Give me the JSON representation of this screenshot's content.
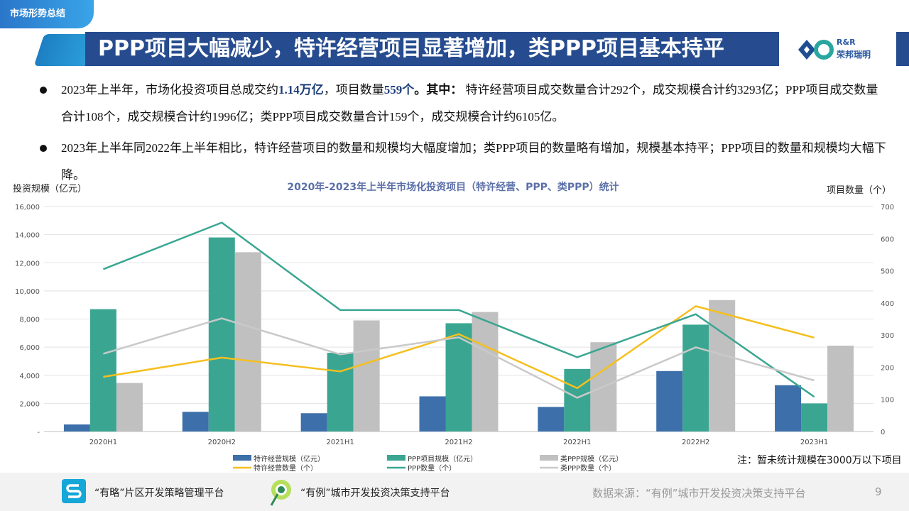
{
  "header": {
    "section_tag": "市场形势总结",
    "title": "PPP项目大幅减少，特许经营项目显著增加，类PPP项目基本持平",
    "logo_latin": "R&R",
    "logo_cn": "荣邦瑞明"
  },
  "bullets": [
    {
      "p1": "2023年上半年，市场化投资项目总成交约",
      "h1": "1.14万亿",
      "p2": "，项目数量",
      "h2": "559个",
      "p3": "。其中：",
      "p4": " 特许经营项目成交数量合计292个，成交规模合计约3293亿；PPP项目成交数量合计108个，成交规模合计约1996亿；类PPP项目成交数量合计159个，成交规模合计约6105亿。"
    },
    {
      "text": "2023年上半年同2022年上半年相比，特许经营项目的数量和规模均大幅度增加；类PPP项目的数量略有增加，规模基本持平；PPP项目的数量和规模均大幅下降。"
    }
  ],
  "chart_data": {
    "type": "bar",
    "title": "2020年-2023年上半年市场化投资项目（特许经营、PPP、类PPP）统计",
    "ylabel_left": "投资规模（亿元）",
    "ylabel_right": "项目数量（个）",
    "categories": [
      "2020H1",
      "2020H2",
      "2021H1",
      "2021H2",
      "2022H1",
      "2022H2",
      "2023H1"
    ],
    "ylim_left": [
      0,
      16000
    ],
    "ylim_right": [
      0,
      700
    ],
    "left_ticks": [
      "-",
      "2,000",
      "4,000",
      "6,000",
      "8,000",
      "10,000",
      "12,000",
      "14,000",
      "16,000"
    ],
    "right_ticks": [
      "0",
      "100",
      "200",
      "300",
      "400",
      "500",
      "600",
      "700"
    ],
    "bar_series": [
      {
        "name": "特许经营规模（亿元）",
        "color": "#3d6faa",
        "values": [
          500,
          1400,
          1300,
          2500,
          1750,
          4300,
          3293
        ]
      },
      {
        "name": "PPP项目规模（亿元）",
        "color": "#3aa692",
        "values": [
          8700,
          13800,
          5600,
          7700,
          4450,
          7600,
          1996
        ]
      },
      {
        "name": "类PPP规模（亿元）",
        "color": "#c0c0c0",
        "values": [
          3450,
          12750,
          7900,
          8500,
          6350,
          9350,
          6105
        ]
      }
    ],
    "line_series": [
      {
        "name": "特许经营数量（个）",
        "color": "#f5bf1e",
        "values": [
          170,
          230,
          187,
          303,
          135,
          390,
          292
        ]
      },
      {
        "name": "PPP数量（个）",
        "color": "#3aa692",
        "values": [
          505,
          650,
          378,
          378,
          231,
          365,
          108
        ]
      },
      {
        "name": "类PPP数量（个）",
        "color": "#c9c9c9",
        "values": [
          242,
          352,
          240,
          293,
          105,
          262,
          159
        ]
      }
    ],
    "legend_position": "bottom",
    "grid": true,
    "note": "注：暂未统计规模在3000万以下项目"
  },
  "footer": {
    "platform1": "“有略”片区开发策略管理平台",
    "platform2": "“有例”城市开发投资决策支持平台",
    "source": "数据来源：“有例”城市开发投资决策支持平台",
    "page": "9"
  },
  "colors": {
    "title_bar": "#264c8f",
    "accent": "#2a76c9"
  }
}
